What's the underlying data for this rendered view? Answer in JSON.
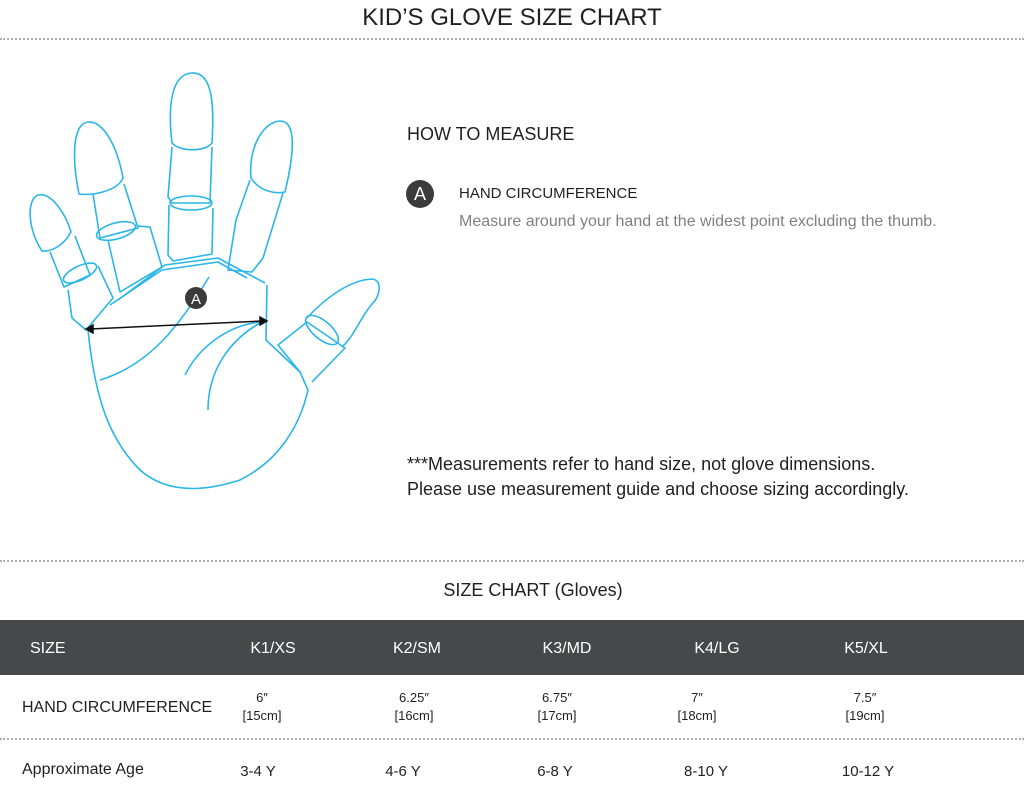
{
  "title": "KID’S GLOVE SIZE CHART",
  "how_to_measure": {
    "heading": "HOW TO MEASURE",
    "marker": "A",
    "item_label": "HAND CIRCUMFERENCE",
    "item_description": "Measure around your hand at the widest point excluding the thumb."
  },
  "notes": [
    "***Measurements refer to hand size, not glove dimensions.",
    "Please use measurement guide and choose sizing accordingly."
  ],
  "illustration": {
    "marker": "A",
    "line_color": "#29b6e8"
  },
  "size_chart": {
    "title": "SIZE CHART (Gloves)",
    "header": {
      "label": "SIZE",
      "sizes": [
        "K1/XS",
        "K2/SM",
        "K3/MD",
        "K4/LG",
        "K5/XL"
      ]
    },
    "rows": [
      {
        "label": "HAND CIRCUMFERENCE",
        "values": [
          {
            "in": "6″",
            "cm": "[15cm]"
          },
          {
            "in": "6.25″",
            "cm": "[16cm]"
          },
          {
            "in": "6.75″",
            "cm": "[17cm]"
          },
          {
            "in": "7″",
            "cm": "[18cm]"
          },
          {
            "in": "7.5″",
            "cm": "[19cm]"
          }
        ]
      },
      {
        "label": "Approximate Age",
        "values": [
          "3-4 Y",
          "4-6 Y",
          "6-8 Y",
          "8-10 Y",
          "10-12 Y"
        ]
      }
    ]
  }
}
